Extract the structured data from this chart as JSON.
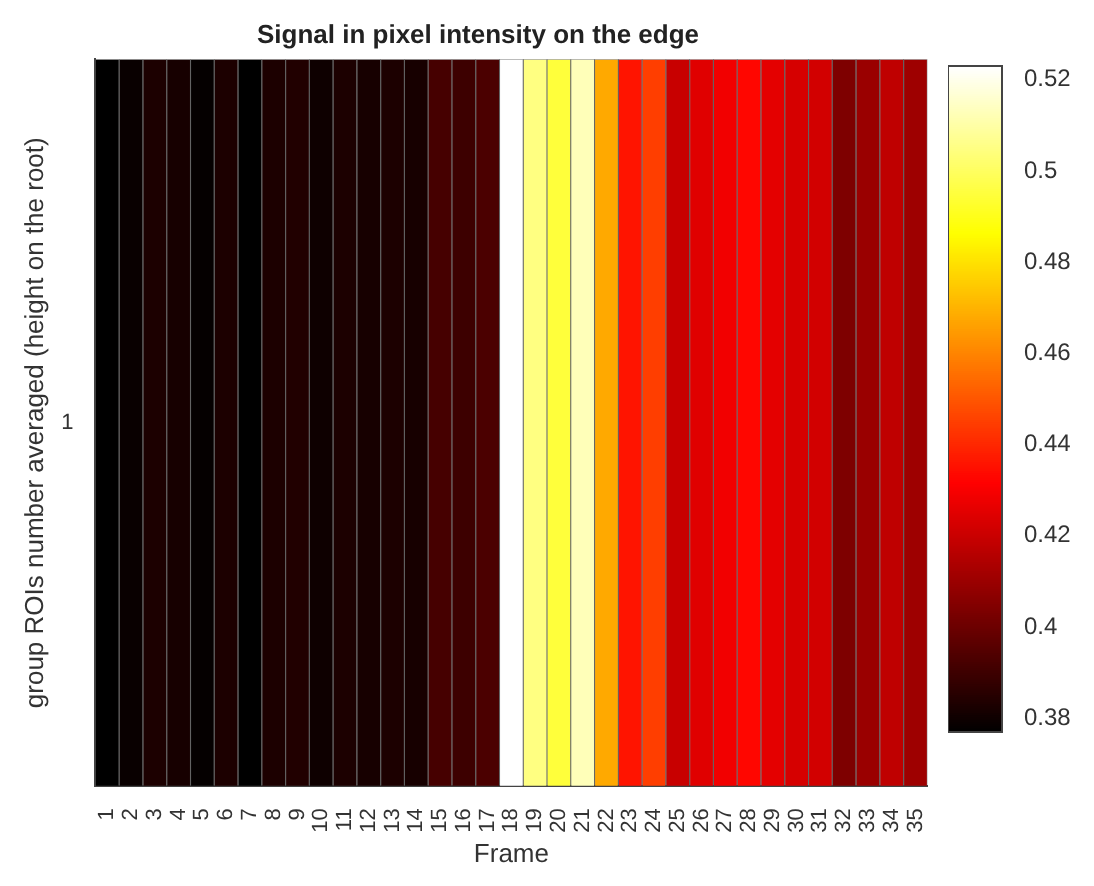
{
  "chart_data": {
    "type": "heatmap",
    "title": "Signal in pixel intensity on the edge",
    "xlabel": "Frame",
    "ylabel": "group ROIs number averaged (height on the root)",
    "categories": [
      "1",
      "2",
      "3",
      "4",
      "5",
      "6",
      "7",
      "8",
      "9",
      "10",
      "11",
      "12",
      "13",
      "14",
      "15",
      "16",
      "17",
      "18",
      "19",
      "20",
      "21",
      "22",
      "23",
      "24",
      "25",
      "26",
      "27",
      "28",
      "29",
      "30",
      "31",
      "32",
      "33",
      "34",
      "35"
    ],
    "y_categories": [
      "1"
    ],
    "cells": [
      [
        0.377,
        0.379,
        0.383,
        0.382,
        0.378,
        0.383,
        0.377,
        0.383,
        0.384,
        0.38,
        0.383,
        0.382,
        0.383,
        0.382,
        0.392,
        0.39,
        0.393,
        0.523,
        0.505,
        0.495,
        0.513,
        0.468,
        0.436,
        0.445,
        0.42,
        0.425,
        0.429,
        0.433,
        0.426,
        0.423,
        0.422,
        0.404,
        0.41,
        0.418,
        0.411
      ]
    ],
    "clim": [
      0.377,
      0.523
    ],
    "cticks": [
      0.38,
      0.4,
      0.42,
      0.44,
      0.46,
      0.48,
      0.5,
      0.52
    ]
  }
}
